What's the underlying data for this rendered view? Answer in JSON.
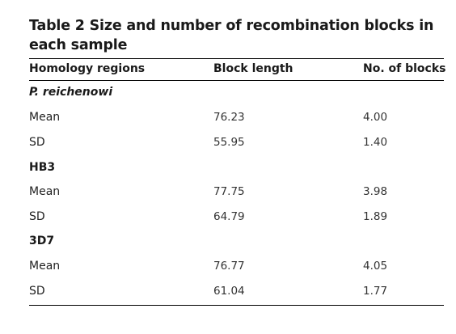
{
  "table": {
    "title": "Table 2 Size and number of recombination blocks in each sample",
    "headers": [
      "Homology regions",
      "Block length",
      "No. of blocks"
    ],
    "groups": [
      {
        "name": "P. reichenowi",
        "rows": [
          {
            "label": "Mean",
            "block_length": "76.23",
            "num_blocks": "4.00"
          },
          {
            "label": "SD",
            "block_length": "55.95",
            "num_blocks": "1.40"
          }
        ]
      },
      {
        "name": "HB3",
        "rows": [
          {
            "label": "Mean",
            "block_length": "77.75",
            "num_blocks": "3.98"
          },
          {
            "label": "SD",
            "block_length": "64.79",
            "num_blocks": "1.89"
          }
        ]
      },
      {
        "name": "3D7",
        "rows": [
          {
            "label": "Mean",
            "block_length": "76.77",
            "num_blocks": "4.05"
          },
          {
            "label": "SD",
            "block_length": "61.04",
            "num_blocks": "1.77"
          }
        ]
      }
    ]
  }
}
